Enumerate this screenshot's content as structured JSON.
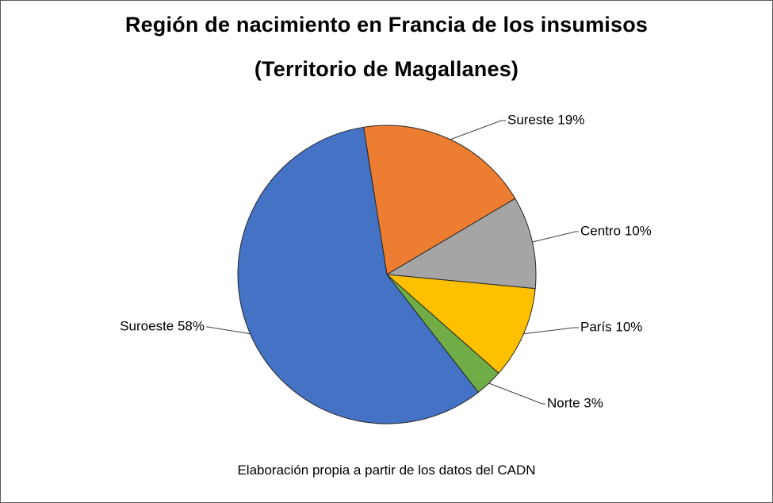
{
  "chart_data": {
    "type": "pie",
    "title": "Región de nacimiento en Francia de los insumisos",
    "subtitle": "(Territorio de Magallanes)",
    "slices": [
      {
        "label": "Sureste 19%",
        "value": 19,
        "color": "#ED7D31"
      },
      {
        "label": "Centro 10%",
        "value": 10,
        "color": "#A5A5A5"
      },
      {
        "label": "París 10%",
        "value": 10,
        "color": "#FFC000"
      },
      {
        "label": "Norte 3%",
        "value": 3,
        "color": "#70AD47"
      },
      {
        "label": "Suroeste 58%",
        "value": 58,
        "color": "#4472C4"
      }
    ],
    "start_angle_deg": -9,
    "direction": "clockwise",
    "legend": "none",
    "source_note": "Elaboración propia a partir de los datos del CADN"
  }
}
